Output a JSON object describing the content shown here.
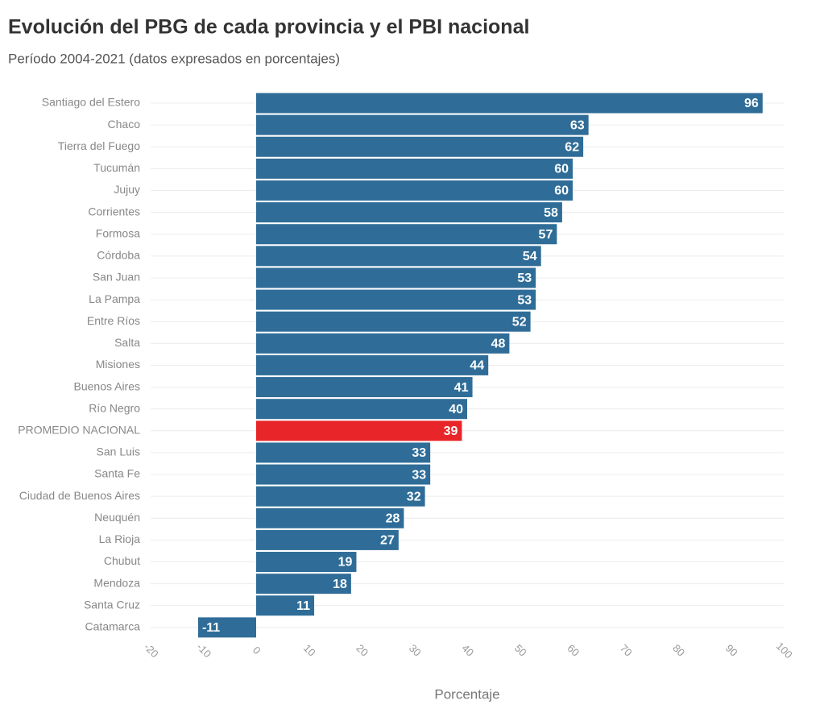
{
  "chart_data": {
    "type": "hbar",
    "title": "Evolución del PBG de cada provincia y el PBI nacional",
    "subtitle": "Período 2004-2021 (datos expresados en porcentajes)",
    "x_label": "Porcentaje",
    "categories": [
      "Santiago del Estero",
      "Chaco",
      "Tierra del Fuego",
      "Tucumán",
      "Jujuy",
      "Corrientes",
      "Formosa",
      "Córdoba",
      "San Juan",
      "La Pampa",
      "Entre Ríos",
      "Salta",
      "Misiones",
      "Buenos Aires",
      "Río Negro",
      "PROMEDIO NACIONAL",
      "San Luis",
      "Santa Fe",
      "Ciudad de Buenos Aires",
      "Neuquén",
      "La Rioja",
      "Chubut",
      "Mendoza",
      "Santa Cruz",
      "Catamarca"
    ],
    "values": [
      96,
      63,
      62,
      60,
      60,
      58,
      57,
      54,
      53,
      53,
      52,
      48,
      44,
      41,
      40,
      39,
      33,
      33,
      32,
      28,
      27,
      19,
      18,
      11,
      -11
    ],
    "colors": [
      "#2f6d98",
      "#2f6d98",
      "#2f6d98",
      "#2f6d98",
      "#2f6d98",
      "#2f6d98",
      "#2f6d98",
      "#2f6d98",
      "#2f6d98",
      "#2f6d98",
      "#2f6d98",
      "#2f6d98",
      "#2f6d98",
      "#2f6d98",
      "#2f6d98",
      "#e8262a",
      "#2f6d98",
      "#2f6d98",
      "#2f6d98",
      "#2f6d98",
      "#2f6d98",
      "#2f6d98",
      "#2f6d98",
      "#2f6d98",
      "#2f6d98"
    ],
    "xlim": [
      -20,
      100
    ],
    "xticks": [
      -20,
      -10,
      0,
      10,
      20,
      30,
      40,
      50,
      60,
      70,
      80,
      90,
      100
    ]
  }
}
